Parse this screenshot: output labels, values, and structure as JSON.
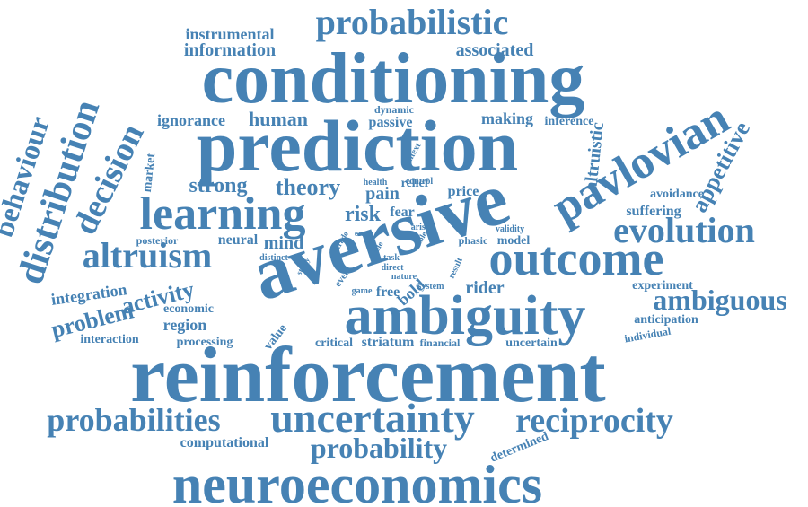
{
  "word_cloud": {
    "color": "#4682b4",
    "words": [
      "reinforcement",
      "conditioning",
      "prediction",
      "aversive",
      "ambiguity",
      "neuroeconomics",
      "outcome",
      "uncertainty",
      "learning",
      "pavlovian",
      "probabilistic",
      "evolution",
      "distribution",
      "reciprocity",
      "altruism",
      "probabilities",
      "probability",
      "ambiguous",
      "decision",
      "behaviour",
      "appetitive",
      "activity",
      "problem",
      "human",
      "ignorance",
      "information",
      "instrumental",
      "associated",
      "risk",
      "theory",
      "strong",
      "pain",
      "fear",
      "mind",
      "region",
      "integration",
      "altruistic",
      "market",
      "making",
      "inference",
      "passive",
      "dynamic",
      "control",
      "health",
      "relief",
      "context",
      "price",
      "avoidance",
      "suffering",
      "posterior",
      "neural",
      "distinct",
      "economic",
      "interaction",
      "processing",
      "value",
      "critical",
      "striatum",
      "financial",
      "uncertain",
      "computational",
      "determined",
      "rider",
      "system",
      "game",
      "free",
      "bold",
      "event",
      "study",
      "task",
      "direct",
      "nature",
      "result",
      "arise",
      "stable",
      "trade",
      "error",
      "role",
      "phasic",
      "model",
      "validity",
      "experiment",
      "anticipation",
      "individual"
    ]
  }
}
